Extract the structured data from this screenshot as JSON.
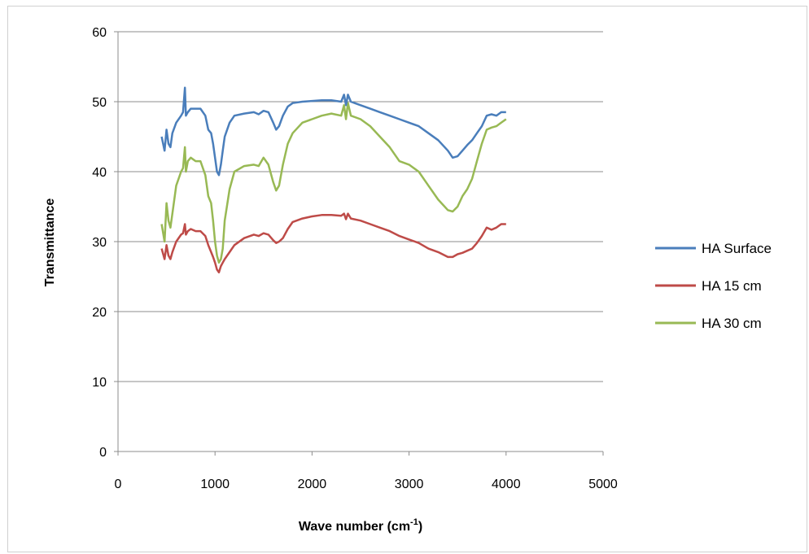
{
  "chart_data": {
    "type": "line",
    "title": "",
    "xlabel": "Wave number (cm-1)",
    "xlabel_base": "Wave number (cm",
    "xlabel_sup": "-1",
    "xlabel_end": ")",
    "ylabel": "Transmittance",
    "xlim": [
      0,
      5000
    ],
    "ylim": [
      0,
      60
    ],
    "xticks": [
      0,
      1000,
      2000,
      3000,
      4000,
      5000
    ],
    "yticks": [
      0,
      10,
      20,
      30,
      40,
      50,
      60
    ],
    "grid": "horizontal",
    "legend_position": "right",
    "series": [
      {
        "name": "HA Surface",
        "color": "#4a7ebb",
        "x": [
          450,
          480,
          500,
          520,
          540,
          560,
          600,
          650,
          670,
          690,
          700,
          720,
          750,
          800,
          850,
          900,
          930,
          960,
          980,
          1000,
          1020,
          1040,
          1060,
          1080,
          1100,
          1150,
          1200,
          1300,
          1400,
          1450,
          1500,
          1550,
          1600,
          1630,
          1660,
          1700,
          1750,
          1800,
          1900,
          2000,
          2100,
          2200,
          2300,
          2330,
          2350,
          2370,
          2400,
          2500,
          2600,
          2700,
          2800,
          2900,
          3000,
          3100,
          3200,
          3300,
          3400,
          3450,
          3500,
          3550,
          3600,
          3650,
          3700,
          3750,
          3800,
          3850,
          3900,
          3950,
          4000
        ],
        "values": [
          45.0,
          43.0,
          46.0,
          44.0,
          43.5,
          45.5,
          47.0,
          48.0,
          48.5,
          52.0,
          48.0,
          48.5,
          49.0,
          49.0,
          49.0,
          48.0,
          46.0,
          45.5,
          44.0,
          42.0,
          40.0,
          39.5,
          41.0,
          43.0,
          45.0,
          47.0,
          48.0,
          48.3,
          48.5,
          48.2,
          48.7,
          48.5,
          47.0,
          46.0,
          46.5,
          48.0,
          49.3,
          49.8,
          50.0,
          50.1,
          50.2,
          50.2,
          50.0,
          51.0,
          49.5,
          51.0,
          50.0,
          49.5,
          49.0,
          48.5,
          48.0,
          47.5,
          47.0,
          46.5,
          45.5,
          44.5,
          43.0,
          42.0,
          42.2,
          43.0,
          43.8,
          44.5,
          45.5,
          46.5,
          48.0,
          48.2,
          48.0,
          48.5,
          48.5
        ]
      },
      {
        "name": "HA 15 cm",
        "color": "#be4b48",
        "x": [
          450,
          480,
          500,
          520,
          540,
          560,
          600,
          650,
          670,
          690,
          700,
          720,
          750,
          800,
          850,
          900,
          930,
          960,
          980,
          1000,
          1020,
          1040,
          1060,
          1080,
          1100,
          1150,
          1200,
          1300,
          1400,
          1450,
          1500,
          1550,
          1600,
          1630,
          1660,
          1700,
          1750,
          1800,
          1900,
          2000,
          2100,
          2200,
          2300,
          2330,
          2350,
          2370,
          2400,
          2500,
          2600,
          2700,
          2800,
          2900,
          3000,
          3100,
          3200,
          3300,
          3400,
          3450,
          3500,
          3550,
          3600,
          3650,
          3700,
          3750,
          3800,
          3850,
          3900,
          3950,
          4000
        ],
        "values": [
          29.0,
          27.5,
          29.5,
          28.0,
          27.5,
          28.5,
          30.0,
          31.0,
          31.2,
          32.5,
          31.0,
          31.5,
          31.8,
          31.5,
          31.5,
          30.8,
          29.5,
          28.5,
          27.8,
          27.0,
          26.0,
          25.6,
          26.5,
          27.0,
          27.5,
          28.5,
          29.5,
          30.5,
          31.0,
          30.8,
          31.2,
          31.0,
          30.2,
          29.8,
          30.0,
          30.5,
          31.8,
          32.8,
          33.3,
          33.6,
          33.8,
          33.8,
          33.7,
          34.0,
          33.2,
          34.0,
          33.3,
          33.0,
          32.5,
          32.0,
          31.5,
          30.8,
          30.3,
          29.8,
          29.0,
          28.5,
          27.8,
          27.8,
          28.2,
          28.4,
          28.7,
          29.0,
          29.8,
          30.8,
          32.0,
          31.7,
          32.0,
          32.5,
          32.5
        ]
      },
      {
        "name": "HA 30 cm",
        "color": "#98b954",
        "x": [
          450,
          480,
          500,
          520,
          540,
          560,
          600,
          650,
          670,
          690,
          700,
          720,
          750,
          800,
          850,
          900,
          930,
          960,
          980,
          1000,
          1020,
          1040,
          1060,
          1080,
          1100,
          1150,
          1200,
          1300,
          1400,
          1450,
          1500,
          1550,
          1600,
          1630,
          1660,
          1700,
          1750,
          1800,
          1900,
          2000,
          2100,
          2200,
          2300,
          2330,
          2350,
          2370,
          2400,
          2500,
          2600,
          2700,
          2800,
          2900,
          3000,
          3100,
          3200,
          3300,
          3400,
          3450,
          3500,
          3550,
          3600,
          3650,
          3700,
          3750,
          3800,
          3850,
          3900,
          3950,
          4000
        ],
        "values": [
          32.5,
          30.0,
          35.5,
          33.0,
          32.0,
          34.0,
          38.0,
          40.0,
          40.5,
          43.5,
          40.0,
          41.5,
          42.0,
          41.5,
          41.5,
          39.5,
          36.5,
          35.5,
          33.0,
          30.0,
          28.0,
          27.0,
          27.5,
          29.0,
          33.0,
          37.5,
          40.0,
          40.8,
          41.0,
          40.8,
          42.0,
          41.0,
          38.5,
          37.3,
          38.0,
          41.0,
          44.0,
          45.5,
          47.0,
          47.5,
          48.0,
          48.3,
          48.0,
          49.5,
          47.5,
          49.8,
          48.0,
          47.5,
          46.5,
          45.0,
          43.5,
          41.5,
          41.0,
          40.0,
          38.0,
          36.0,
          34.5,
          34.3,
          35.0,
          36.5,
          37.5,
          39.0,
          41.5,
          44.0,
          46.0,
          46.3,
          46.5,
          47.0,
          47.5
        ]
      }
    ]
  }
}
